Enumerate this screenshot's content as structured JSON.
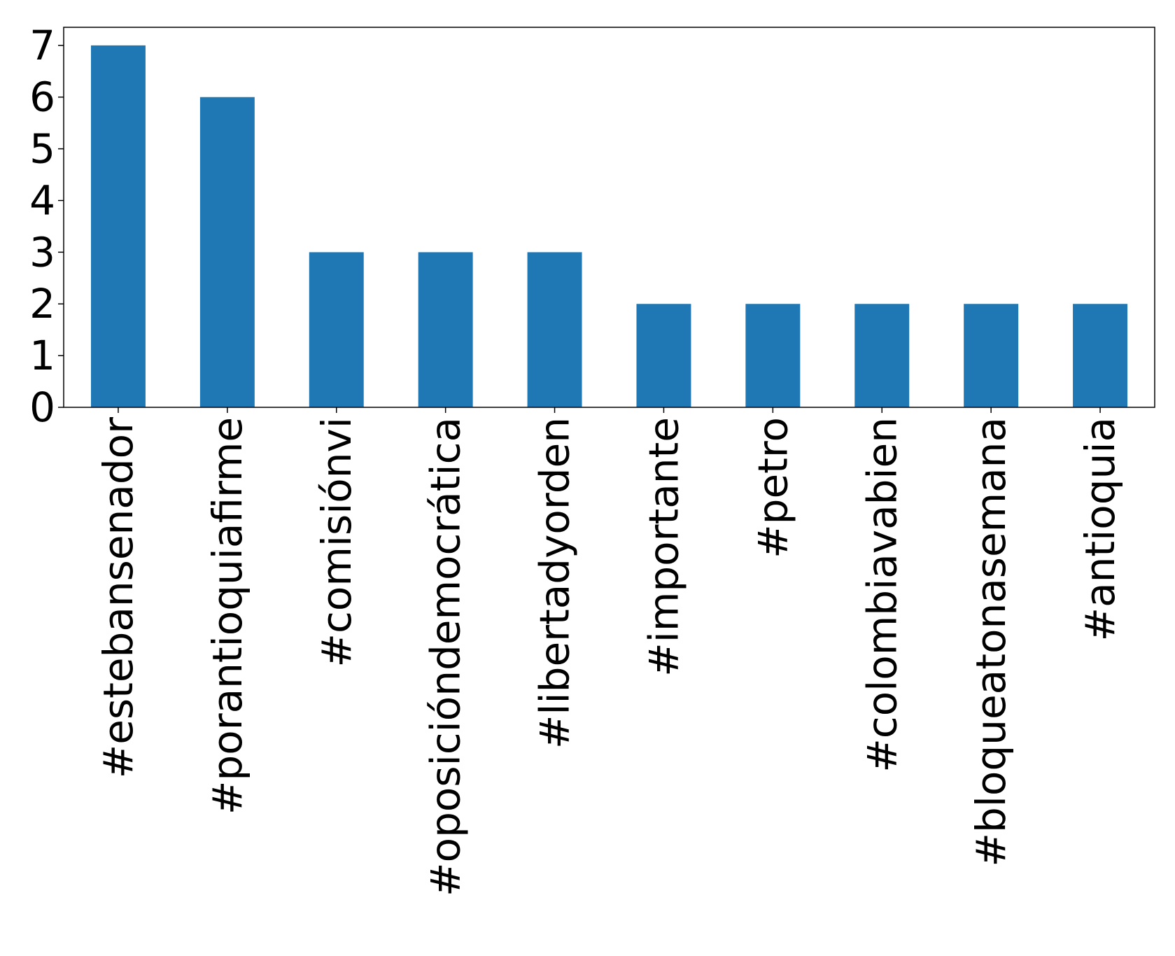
{
  "chart_data": {
    "type": "bar",
    "title": "",
    "xlabel": "",
    "ylabel": "",
    "categories": [
      "#estebansenador",
      "#porantioquiafirme",
      "#comisiónvi",
      "#oposicióndemocrática",
      "#libertadyorden",
      "#importante",
      "#petro",
      "#colombiavabien",
      "#bloqueatonasemana",
      "#antioquia"
    ],
    "values": [
      7,
      6,
      3,
      3,
      3,
      2,
      2,
      2,
      2,
      2
    ],
    "ylim": [
      0,
      7.35
    ],
    "yticks": [
      0,
      1,
      2,
      3,
      4,
      5,
      6,
      7
    ],
    "bar_color": "#1f77b4",
    "grid": false,
    "legend": "none"
  }
}
